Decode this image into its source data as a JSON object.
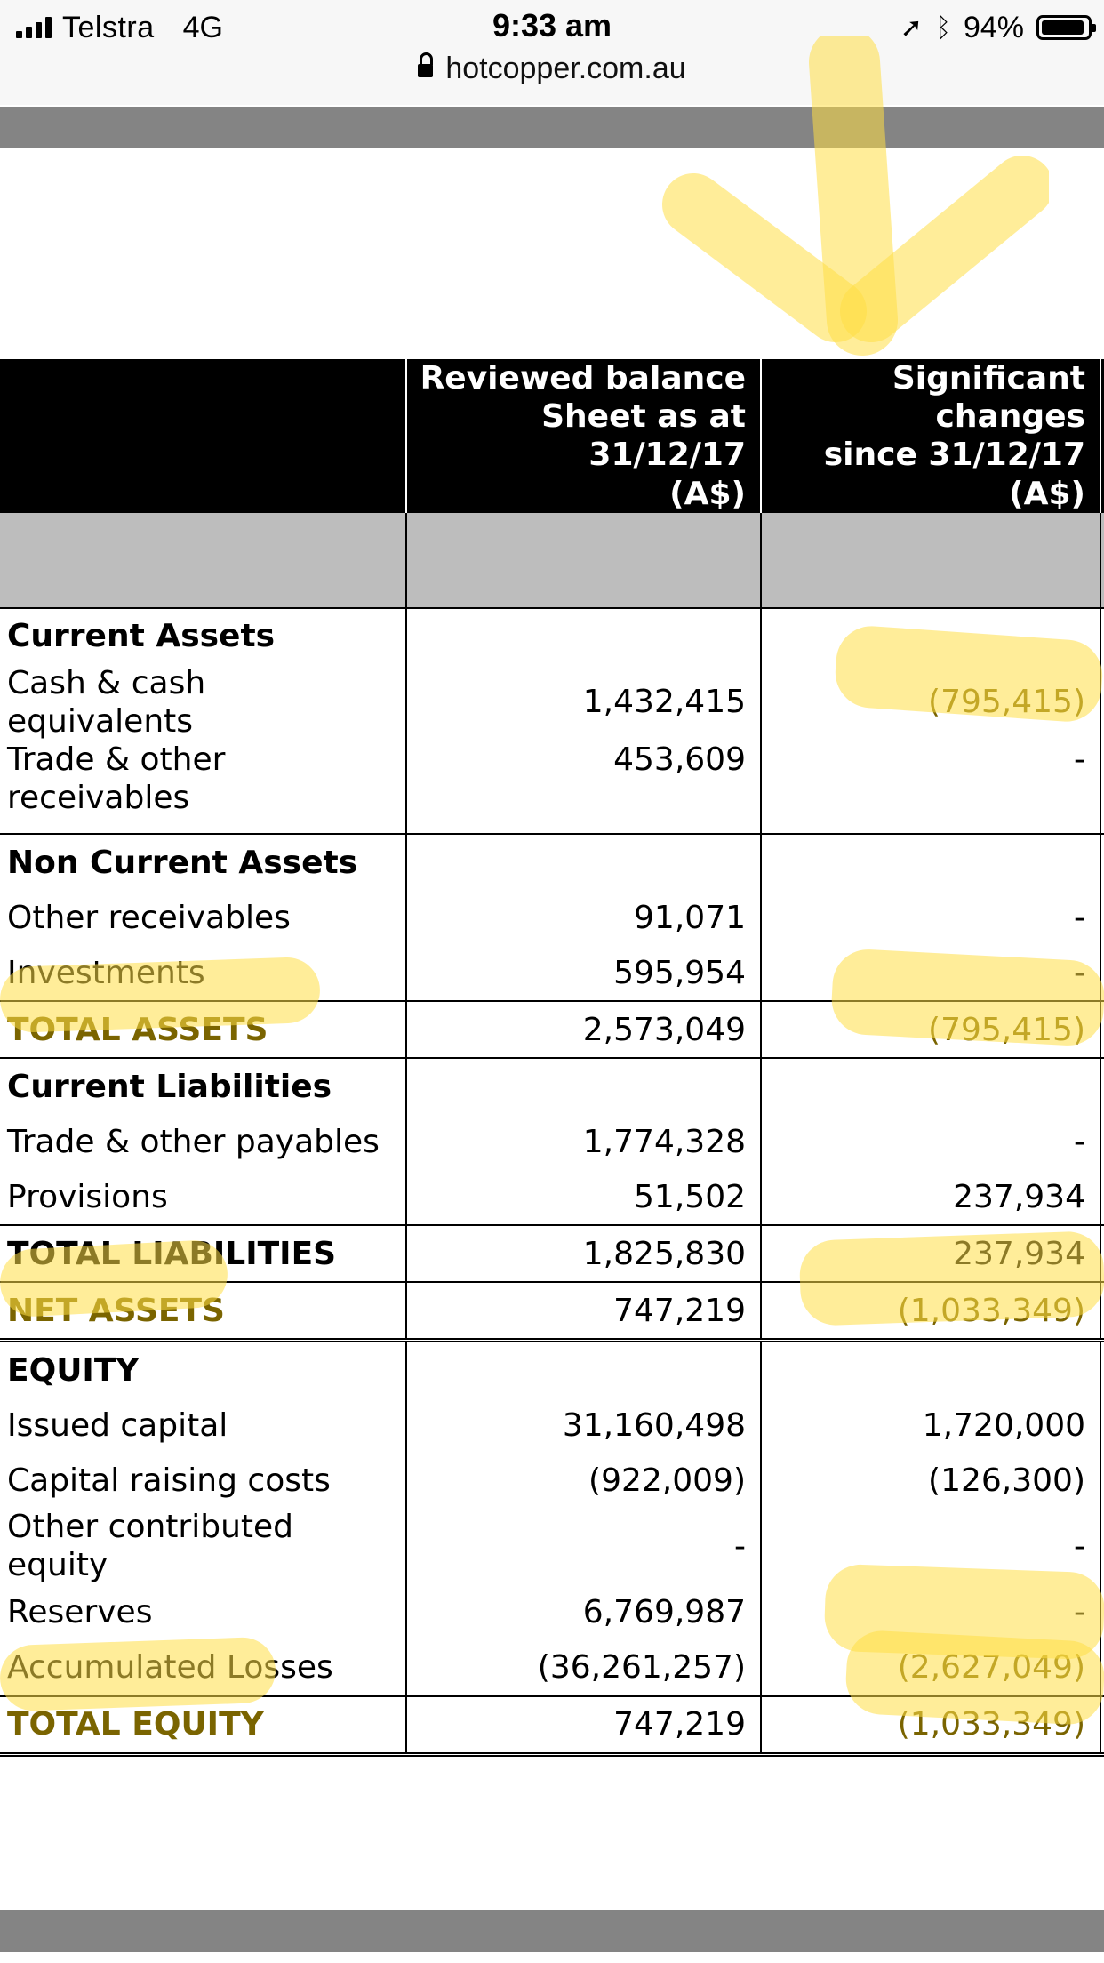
{
  "status_bar": {
    "carrier": "Telstra",
    "network": "4G",
    "time": "9:33 am",
    "url": "hotcopper.com.au",
    "battery_percent": "94%",
    "battery_level": 0.94,
    "icons": [
      "signal-icon",
      "lock-icon",
      "location-icon",
      "bluetooth-icon",
      "battery-icon"
    ]
  },
  "colors": {
    "highlighter": "#ffde46",
    "header_bg": "#000000",
    "subheader_bg": "#bdbdbd",
    "browser_bar": "#848484",
    "highlighted_text": "#7a6400"
  },
  "table": {
    "headers": [
      "",
      "Reviewed balance Sheet as at 31/12/17 (A$)",
      "Significant changes since 31/12/17 (A$)"
    ],
    "header_col2_lines": [
      "Reviewed balance",
      "Sheet as at 31/12/17",
      "(A$)"
    ],
    "header_col3_lines": [
      "Significant changes",
      "since 31/12/17",
      "(A$)"
    ],
    "rows": [
      {
        "label": "Current Assets",
        "reviewed": "",
        "changes": ""
      },
      {
        "label": "Cash & cash equivalents",
        "reviewed": "1,432,415",
        "changes": "(795,415)"
      },
      {
        "label": "Trade & other receivables",
        "reviewed": "453,609",
        "changes": "-"
      },
      {
        "label": "Non Current Assets",
        "reviewed": "",
        "changes": ""
      },
      {
        "label": "Other receivables",
        "reviewed": "91,071",
        "changes": "-"
      },
      {
        "label": "Investments",
        "reviewed": "595,954",
        "changes": "-"
      },
      {
        "label": "TOTAL ASSETS",
        "reviewed": "2,573,049",
        "changes": "(795,415)"
      },
      {
        "label": "Current Liabilities",
        "reviewed": "",
        "changes": ""
      },
      {
        "label": "Trade & other payables",
        "reviewed": "1,774,328",
        "changes": "-"
      },
      {
        "label": "Provisions",
        "reviewed": "51,502",
        "changes": "237,934"
      },
      {
        "label": "TOTAL LIABILITIES",
        "reviewed": "1,825,830",
        "changes": "237,934"
      },
      {
        "label": "NET ASSETS",
        "reviewed": "747,219",
        "changes": "(1,033,349)"
      },
      {
        "label": "EQUITY",
        "reviewed": "",
        "changes": ""
      },
      {
        "label": "Issued capital",
        "reviewed": "31,160,498",
        "changes": "1,720,000"
      },
      {
        "label": "Capital raising costs",
        "reviewed": "(922,009)",
        "changes": "(126,300)"
      },
      {
        "label": "Other contributed equity",
        "reviewed": "-",
        "changes": "-"
      },
      {
        "label": "Reserves",
        "reviewed": "6,769,987",
        "changes": "-"
      },
      {
        "label": "Accumulated Losses",
        "reviewed": "(36,261,257)",
        "changes": "(2,627,049)"
      },
      {
        "label": "TOTAL EQUITY",
        "reviewed": "747,219",
        "changes": "(1,033,349)"
      }
    ]
  }
}
